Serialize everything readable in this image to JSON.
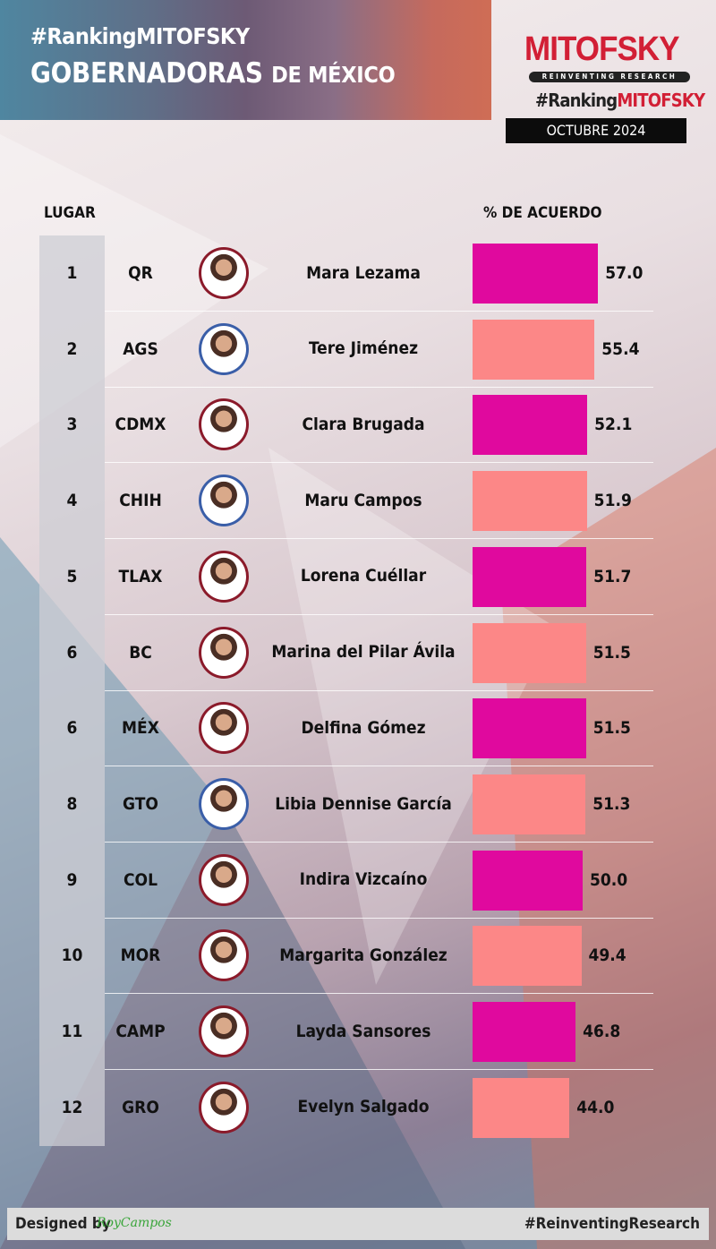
{
  "header": {
    "hashtag": "#RankingMITOFSKY",
    "title_main": "GOBERNADORAS",
    "title_rest": "DE MÉXICO"
  },
  "brand": {
    "logo": "MITOFSKY",
    "tagline": "REINVENTING RESEARCH",
    "ranking_prefix": "#Ranking",
    "ranking_brand": "MITOFSKY",
    "date": "OCTUBRE 2024"
  },
  "columns": {
    "rank": "LUGAR",
    "value": "% DE ACUERDO"
  },
  "colors": {
    "magenta": "#e0099e",
    "salmon": "#fc8787"
  },
  "chart_data": {
    "type": "bar",
    "orientation": "horizontal",
    "title": "GOBERNADORAS DE MÉXICO",
    "ylabel": "% DE ACUERDO",
    "rows": [
      {
        "rank": "1",
        "state": "QR",
        "name": "Mara Lezama",
        "value": 57.0,
        "label": "57.0",
        "color": "magenta",
        "frame": "red"
      },
      {
        "rank": "2",
        "state": "AGS",
        "name": "Tere Jiménez",
        "value": 55.4,
        "label": "55.4",
        "color": "salmon",
        "frame": "blue"
      },
      {
        "rank": "3",
        "state": "CDMX",
        "name": "Clara Brugada",
        "value": 52.1,
        "label": "52.1",
        "color": "magenta",
        "frame": "red"
      },
      {
        "rank": "4",
        "state": "CHIH",
        "name": "Maru Campos",
        "value": 51.9,
        "label": "51.9",
        "color": "salmon",
        "frame": "blue"
      },
      {
        "rank": "5",
        "state": "TLAX",
        "name": "Lorena Cuéllar",
        "value": 51.7,
        "label": "51.7",
        "color": "magenta",
        "frame": "red"
      },
      {
        "rank": "6",
        "state": "BC",
        "name": "Marina del Pilar Ávila",
        "value": 51.5,
        "label": "51.5",
        "color": "salmon",
        "frame": "red"
      },
      {
        "rank": "6",
        "state": "MÉX",
        "name": "Delfina Gómez",
        "value": 51.5,
        "label": "51.5",
        "color": "magenta",
        "frame": "red"
      },
      {
        "rank": "8",
        "state": "GTO",
        "name": "Libia Dennise García",
        "value": 51.3,
        "label": "51.3",
        "color": "salmon",
        "frame": "blue"
      },
      {
        "rank": "9",
        "state": "COL",
        "name": "Indira Vizcaíno",
        "value": 50.0,
        "label": "50.0",
        "color": "magenta",
        "frame": "red"
      },
      {
        "rank": "10",
        "state": "MOR",
        "name": "Margarita González",
        "value": 49.4,
        "label": "49.4",
        "color": "salmon",
        "frame": "red"
      },
      {
        "rank": "11",
        "state": "CAMP",
        "name": "Layda Sansores",
        "value": 46.8,
        "label": "46.8",
        "color": "magenta",
        "frame": "red"
      },
      {
        "rank": "12",
        "state": "GRO",
        "name": "Evelyn Salgado",
        "value": 44.0,
        "label": "44.0",
        "color": "salmon",
        "frame": "red"
      }
    ]
  },
  "footer": {
    "designed_by": "Designed by",
    "signature": "RoyCampos",
    "hashtag": "#ReinventingResearch"
  }
}
